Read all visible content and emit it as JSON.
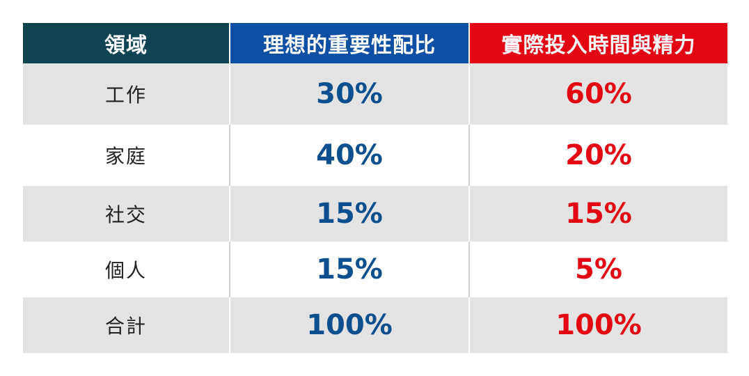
{
  "chart_data": {
    "type": "table",
    "headers": [
      "領域",
      "理想的重要性配比",
      "實際投入時間與精力"
    ],
    "rows": [
      {
        "domain": "工作",
        "ideal": "30%",
        "actual": "60%"
      },
      {
        "domain": "家庭",
        "ideal": "40%",
        "actual": "20%"
      },
      {
        "domain": "社交",
        "ideal": "15%",
        "actual": "15%"
      },
      {
        "domain": "個人",
        "ideal": "15%",
        "actual": "5%"
      },
      {
        "domain": "合計",
        "ideal": "100%",
        "actual": "100%"
      }
    ],
    "colors": {
      "domain_header": "#0f4553",
      "ideal_header": "#0c4fa3",
      "actual_header": "#e30613",
      "ideal_value": "#0c4f8e",
      "actual_value": "#e30613",
      "row_shade": "#e3e3e3"
    }
  }
}
